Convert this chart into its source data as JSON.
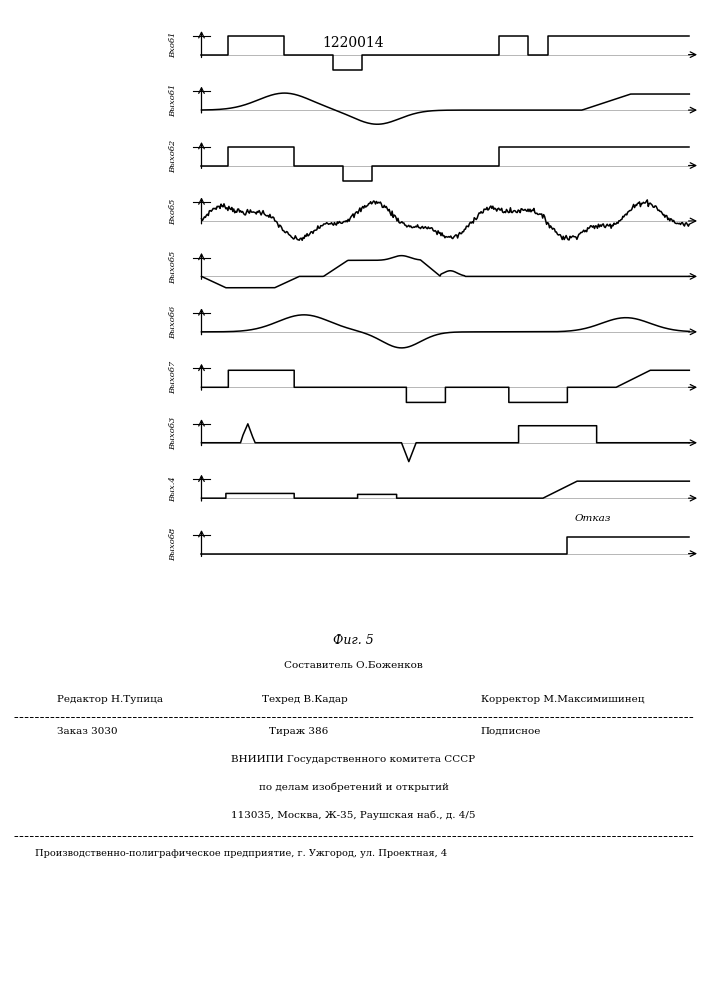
{
  "title": "1220014",
  "fig_label": "Фиг. 5",
  "background_color": "#ffffff",
  "line_color": "#000000",
  "channel_labels": [
    "Вхоб1",
    "Выхоб1",
    "Выхоб2",
    "Вхоб5",
    "Выхоб5",
    "Выхоб6",
    "Выхоб7",
    "Выхоб3",
    "Вых.4",
    "Выхоб8"
  ],
  "otkazlabel": "Отказ",
  "footer_author": "Составитель О.Боженков",
  "footer_editor": "Редактор Н.Тупица",
  "footer_tehred": "Техред В.Кадар",
  "footer_corrector": "Корректор М.Максимишинец",
  "footer_zakaz": "Заказ 3030",
  "footer_tirazh": "Тираж 386",
  "footer_podpisnoe": "Подписное",
  "footer_vniipи": "ВНИИПИ Государственного комитета СССР",
  "footer_dela": "по делам изобретений и открытий",
  "footer_addr": "113035, Москва, Ж-35, Раушская наб., д. 4/5",
  "footer_prod": "Производственно-полиграфическое предприятие, г. Ужгород, ул. Проектная, 4"
}
